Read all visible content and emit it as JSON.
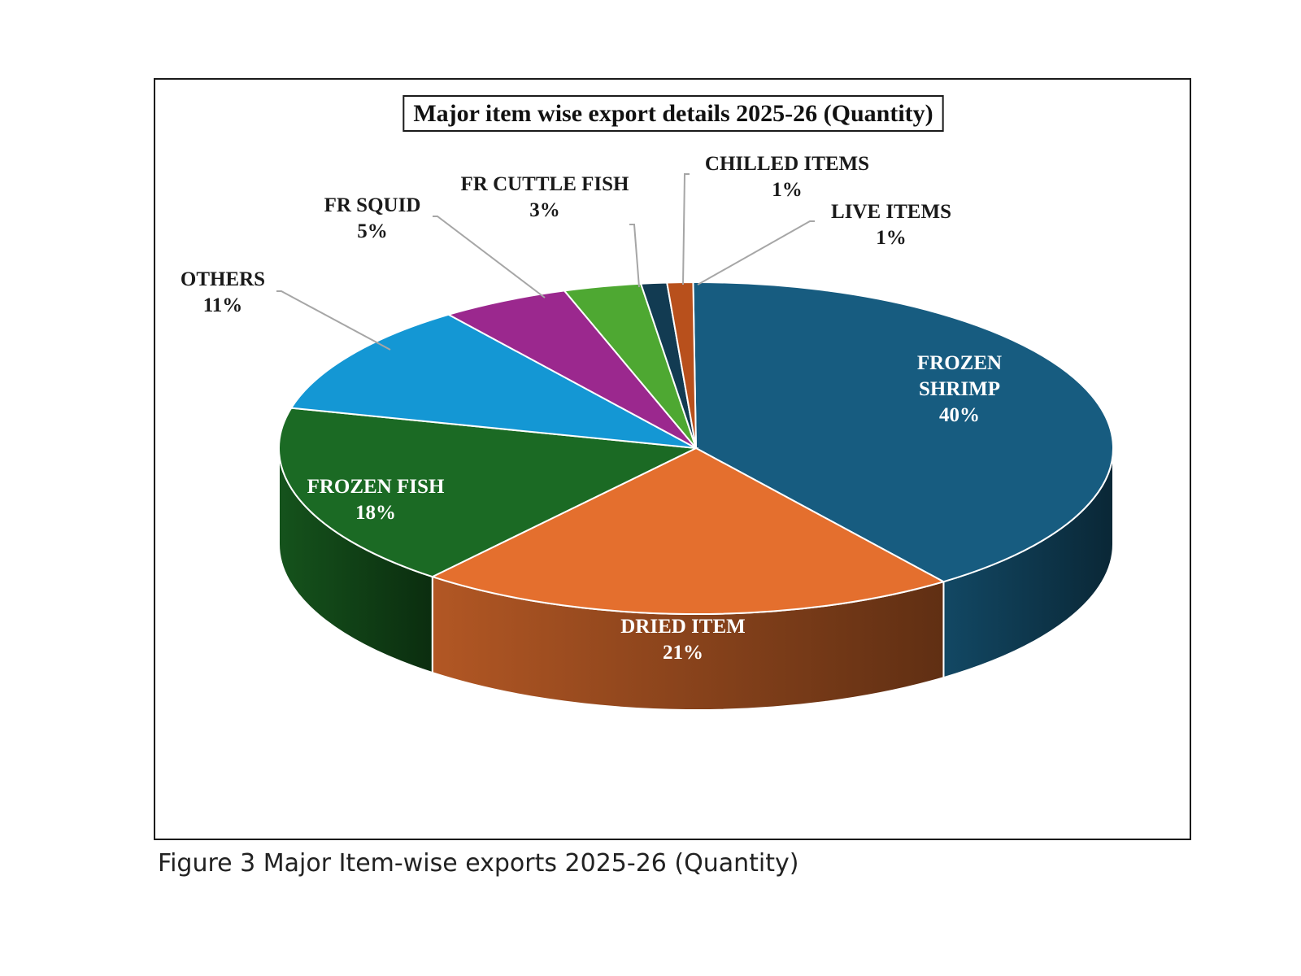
{
  "caption": "Figure 3 Major Item-wise exports 2025-26 (Quantity)",
  "chart_data": {
    "type": "pie",
    "title": "Major item wise export details 2025-26 (Quantity)",
    "three_d": true,
    "legend": "none",
    "slices": [
      {
        "name": "FROZEN SHRIMP",
        "value": 40,
        "label_lines": [
          "FROZEN",
          "SHRIMP",
          "40%"
        ],
        "color": "#175c80",
        "label_color": "#ffffff"
      },
      {
        "name": "DRIED ITEM",
        "value": 21,
        "label_lines": [
          "DRIED ITEM",
          "21%"
        ],
        "color": "#e46f2e",
        "label_color": "#ffffff"
      },
      {
        "name": "FROZEN FISH",
        "value": 18,
        "label_lines": [
          "FROZEN FISH",
          "18%"
        ],
        "color": "#1b6a24",
        "label_color": "#ffffff"
      },
      {
        "name": "OTHERS",
        "value": 11,
        "label_lines": [
          "OTHERS",
          "11%"
        ],
        "color": "#1497d4",
        "label_color": "#1a1a1a"
      },
      {
        "name": "FR SQUID",
        "value": 5,
        "label_lines": [
          "FR SQUID",
          "5%"
        ],
        "color": "#9b288e",
        "label_color": "#1a1a1a"
      },
      {
        "name": "FR CUTTLE FISH",
        "value": 3,
        "label_lines": [
          "FR CUTTLE  FISH",
          "3%"
        ],
        "color": "#4ea832",
        "label_color": "#1a1a1a"
      },
      {
        "name": "CHILLED ITEMS",
        "value": 1,
        "label_lines": [
          "CHILLED ITEMS",
          "1%"
        ],
        "color": "#123b52",
        "label_color": "#1a1a1a"
      },
      {
        "name": "LIVE ITEMS",
        "value": 1,
        "label_lines": [
          "LIVE ITEMS",
          "1%"
        ],
        "color": "#b8501c",
        "label_color": "#1a1a1a"
      }
    ]
  }
}
